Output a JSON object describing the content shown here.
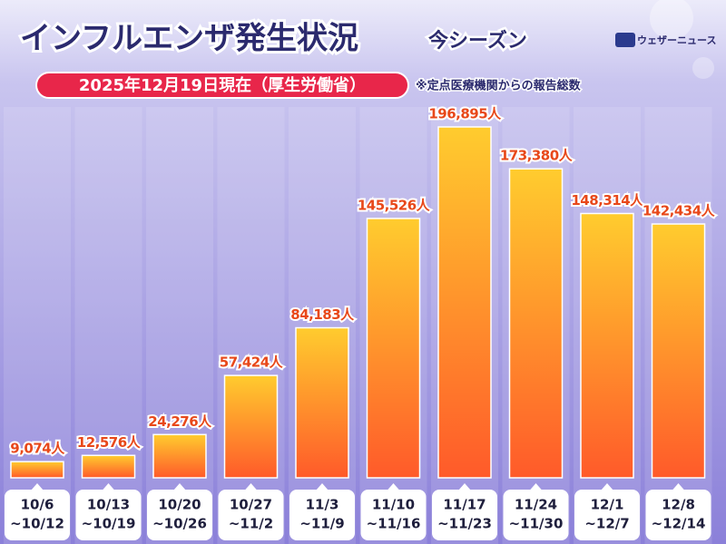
{
  "title": "インフルエンザ発生状況",
  "subtitle": "今シーズン",
  "logo": "ウェザーニュース",
  "date_note": "2025年12月19日現在（厚生労働省）",
  "footnote": "※定点医療機関からの報告総数",
  "chart_data": {
    "type": "bar",
    "categories": [
      [
        "10/6",
        "~10/12"
      ],
      [
        "10/13",
        "~10/19"
      ],
      [
        "10/20",
        "~10/26"
      ],
      [
        "10/27",
        "~11/2"
      ],
      [
        "11/3",
        "~11/9"
      ],
      [
        "11/10",
        "~11/16"
      ],
      [
        "11/17",
        "~11/23"
      ],
      [
        "11/24",
        "~11/30"
      ],
      [
        "12/1",
        "~12/7"
      ],
      [
        "12/8",
        "~12/14"
      ]
    ],
    "values": [
      9074,
      12576,
      24276,
      57424,
      84183,
      145526,
      196895,
      173380,
      148314,
      142434
    ],
    "value_labels": [
      "9,074人",
      "12,576人",
      "24,276人",
      "57,424人",
      "84,183人",
      "145,526人",
      "196,895人",
      "173,380人",
      "148,314人",
      "142,434人"
    ],
    "color": [
      "#ffcc2e",
      "#ff5a2a"
    ]
  }
}
